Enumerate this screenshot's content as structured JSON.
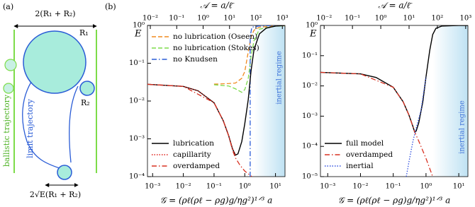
{
  "diagram": {
    "panel": "(a)",
    "width_label": "2(R₁ + R₂)",
    "r1_label": "R₁",
    "r2_label": "R₂",
    "ballistic_label": "ballistic trajectory",
    "limit_label": "limit trajectory",
    "bottom_label": "2√E(R₁ + R₂)"
  },
  "chart_data": [
    {
      "type": "line",
      "panel": "(b)",
      "x_scale": "log",
      "y_scale": "log",
      "ylabel": "E",
      "xlabel": "𝒢 = (ρℓ(ρℓ − ρg)g/ηg²)¹ᐟ³ a",
      "x2label": "𝒜 = a/ℓ̄",
      "xlim": [
        0.00068,
        20.4
      ],
      "ylim": [
        0.0001,
        1
      ],
      "x2lim": [
        0.0078,
        1260
      ],
      "xticks": [
        {
          "value": 0.001,
          "label": "10⁻³"
        },
        {
          "value": 0.01,
          "label": "10⁻²"
        },
        {
          "value": 0.1,
          "label": "10⁻¹"
        },
        {
          "value": 1,
          "label": "10⁰"
        },
        {
          "value": 10,
          "label": "10¹"
        }
      ],
      "x2ticks": [
        {
          "value": 0.01,
          "label": "10⁻²"
        },
        {
          "value": 0.1,
          "label": "10⁻¹"
        },
        {
          "value": 1,
          "label": "10⁰"
        },
        {
          "value": 10,
          "label": "10¹"
        },
        {
          "value": 100,
          "label": "10²"
        },
        {
          "value": 1000,
          "label": "10³"
        }
      ],
      "yticks": [
        {
          "value": 0.0001,
          "label": "10⁻⁴"
        },
        {
          "value": 0.001,
          "label": "10⁻³"
        },
        {
          "value": 0.01,
          "label": "10⁻²"
        },
        {
          "value": 0.1,
          "label": "10⁻¹"
        },
        {
          "value": 1,
          "label": "10⁰"
        }
      ],
      "shade_from": 2,
      "shade_label": "inertial regime",
      "series": [
        {
          "name": "no lubrication (Oseen)",
          "color": "#f08a1e",
          "style": "dashed",
          "legend": "upper-left",
          "x": [
            0.1,
            0.3,
            0.5,
            0.8,
            1,
            1.3,
            1.6,
            2,
            3,
            10,
            20
          ],
          "values": [
            0.028,
            0.029,
            0.03,
            0.04,
            0.06,
            0.2,
            0.5,
            0.75,
            0.9,
            0.97,
            0.98
          ]
        },
        {
          "name": "no lubrication (Stokes)",
          "color": "#7ddc4a",
          "style": "dashed",
          "legend": "upper-left",
          "x": [
            0.1,
            0.3,
            0.5,
            0.8,
            1,
            1.3,
            1.6,
            2,
            3,
            10,
            20
          ],
          "values": [
            0.027,
            0.025,
            0.021,
            0.017,
            0.02,
            0.04,
            0.15,
            0.4,
            0.8,
            0.96,
            0.98
          ]
        },
        {
          "name": "no Knudsen",
          "color": "#2a5cd6",
          "style": "dashdot",
          "legend": "upper-left",
          "x": [
            1.5,
            1.5,
            1.7,
            3,
            20
          ],
          "values": [
            0.0001,
            0.5,
            0.9,
            0.97,
            1
          ]
        },
        {
          "name": "lubrication",
          "color": "#000000",
          "style": "solid",
          "legend": "lower-left",
          "x": [
            0.00068,
            0.01,
            0.03,
            0.1,
            0.2,
            0.3,
            0.4,
            0.5,
            0.6,
            0.8,
            1,
            1.3,
            1.6,
            2,
            3,
            5,
            10,
            20
          ],
          "values": [
            0.0277,
            0.0244,
            0.0187,
            0.009,
            0.003,
            0.0012,
            0.00054,
            0.00037,
            0.0004,
            0.00085,
            0.0025,
            0.011,
            0.063,
            0.23,
            0.6,
            0.85,
            0.96,
            1
          ]
        },
        {
          "name": "capillarity",
          "color": "#e0201b",
          "style": "dotted",
          "legend": "lower-left",
          "x": [
            0.00068,
            0.01,
            0.03,
            0.1,
            0.2,
            0.3,
            0.4,
            0.5
          ],
          "values": [
            0.0277,
            0.0244,
            0.0187,
            0.009,
            0.003,
            0.0012,
            0.00054,
            0.00037
          ]
        },
        {
          "name": "overdamped",
          "color": "#d83020",
          "style": "dashdot",
          "legend": "lower-left",
          "x": [
            0.00068,
            0.01,
            0.1,
            0.2,
            0.3,
            0.4,
            0.5,
            0.7,
            1,
            1.7
          ],
          "values": [
            0.0277,
            0.0244,
            0.009,
            0.003,
            0.0012,
            0.0005,
            0.00031,
            0.0002,
            0.00014,
            0.0001
          ]
        }
      ]
    },
    {
      "type": "line",
      "x_scale": "log",
      "y_scale": "log",
      "ylabel": "E",
      "xlabel": "𝒢 = (ρℓ(ρℓ − ρg)g/ηg²)¹ᐟ³ a",
      "x2label": "𝒜 = a/ℓ̄",
      "xlim": [
        0.0006,
        19
      ],
      "ylim": [
        1e-05,
        1
      ],
      "x2lim": [
        0.0074,
        1200
      ],
      "xticks": [
        {
          "value": 0.001,
          "label": "10⁻³"
        },
        {
          "value": 0.01,
          "label": "10⁻²"
        },
        {
          "value": 0.1,
          "label": "10⁻¹"
        },
        {
          "value": 1,
          "label": "10⁰"
        },
        {
          "value": 10,
          "label": "10¹"
        }
      ],
      "x2ticks": [
        {
          "value": 0.01,
          "label": "10⁻²"
        },
        {
          "value": 0.1,
          "label": "10⁻¹"
        },
        {
          "value": 1,
          "label": "10⁰"
        },
        {
          "value": 10,
          "label": "10¹"
        },
        {
          "value": 100,
          "label": "10²"
        },
        {
          "value": 1000,
          "label": "10³"
        }
      ],
      "yticks": [
        {
          "value": 1e-05,
          "label": "10⁻⁵"
        },
        {
          "value": 0.0001,
          "label": "10⁻⁴"
        },
        {
          "value": 0.001,
          "label": "10⁻³"
        },
        {
          "value": 0.01,
          "label": "10⁻²"
        },
        {
          "value": 0.1,
          "label": "10⁻¹"
        },
        {
          "value": 1,
          "label": "10⁰"
        }
      ],
      "shade_from": 1.6,
      "shade_label": "inertial regime",
      "series": [
        {
          "name": "full model",
          "color": "#000000",
          "style": "solid",
          "legend": "lower-left",
          "x": [
            0.0006,
            0.01,
            0.03,
            0.1,
            0.2,
            0.3,
            0.4,
            0.45,
            0.5,
            0.6,
            0.8,
            1,
            1.3,
            1.6,
            2,
            3,
            10,
            19
          ],
          "values": [
            0.028,
            0.025,
            0.019,
            0.009,
            0.003,
            0.0011,
            0.00045,
            0.0003,
            0.00032,
            0.0006,
            0.003,
            0.02,
            0.15,
            0.5,
            0.8,
            0.95,
            1,
            1
          ]
        },
        {
          "name": "overdamped",
          "color": "#d83020",
          "style": "dashdot",
          "legend": "lower-left",
          "x": [
            0.0006,
            0.01,
            0.1,
            0.2,
            0.3,
            0.4,
            0.45,
            0.6,
            1,
            1.6
          ],
          "values": [
            0.028,
            0.025,
            0.009,
            0.003,
            0.0011,
            0.00045,
            0.0003,
            0.00015,
            4e-05,
            1e-05
          ]
        },
        {
          "name": "inertial",
          "color": "#3050e0",
          "style": "dotted",
          "legend": "lower-left",
          "x": [
            0.25,
            0.3,
            0.4,
            0.5,
            0.7,
            1
          ],
          "values": [
            1e-05,
            3e-05,
            0.00015,
            0.0004,
            0.0015,
            0.02
          ]
        }
      ]
    }
  ]
}
